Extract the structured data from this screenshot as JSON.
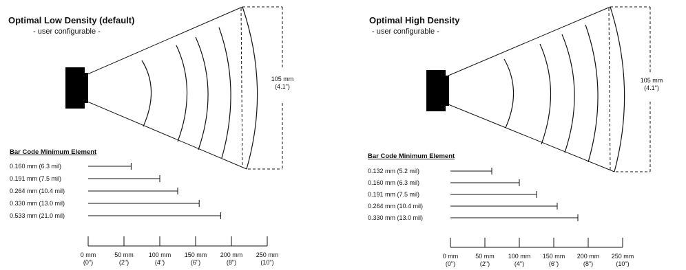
{
  "panels": [
    {
      "title": "Optimal Low Density (default)",
      "subtitle": "- user configurable -",
      "height_label": [
        "105 mm",
        "(4.1\")"
      ],
      "heading": "Bar Code Minimum Element",
      "elements": [
        {
          "label": "0.160 mm (6.3 mil)",
          "range_mm": 60
        },
        {
          "label": "0.191 mm (7.5 mil)",
          "range_mm": 100
        },
        {
          "label": "0.264 mm (10.4 mil)",
          "range_mm": 125
        },
        {
          "label": "0.330 mm (13.0 mil)",
          "range_mm": 155
        },
        {
          "label": "0.533 mm (21.0 mil)",
          "range_mm": 185
        }
      ],
      "ticks": [
        {
          "mm": "0 mm",
          "in": "(0\")"
        },
        {
          "mm": "50 mm",
          "in": "(2\")"
        },
        {
          "mm": "100 mm",
          "in": "(4\")"
        },
        {
          "mm": "150 mm",
          "in": "(6\")"
        },
        {
          "mm": "200 mm",
          "in": "(8\")"
        },
        {
          "mm": "250 mm",
          "in": "(10\")"
        }
      ]
    },
    {
      "title": "Optimal High Density",
      "subtitle": "- user configurable -",
      "height_label": [
        "105 mm",
        "(4.1\")"
      ],
      "heading": "Bar Code Minimum Element",
      "elements": [
        {
          "label": "0.132 mm (5.2 mil)",
          "range_mm": 60
        },
        {
          "label": "0.160 mm (6.3 mil)",
          "range_mm": 100
        },
        {
          "label": "0.191 mm (7.5 mil)",
          "range_mm": 125
        },
        {
          "label": "0.264 mm (10.4 mil)",
          "range_mm": 155
        },
        {
          "label": "0.330 mm (13.0 mil)",
          "range_mm": 185
        }
      ],
      "ticks": [
        {
          "mm": "0 mm",
          "in": "(0\")"
        },
        {
          "mm": "50 mm",
          "in": "(2\")"
        },
        {
          "mm": "100 mm",
          "in": "(4\")"
        },
        {
          "mm": "150 mm",
          "in": "(6\")"
        },
        {
          "mm": "200 mm",
          "in": "(8\")"
        },
        {
          "mm": "250 mm",
          "in": "(10\")"
        }
      ]
    }
  ]
}
